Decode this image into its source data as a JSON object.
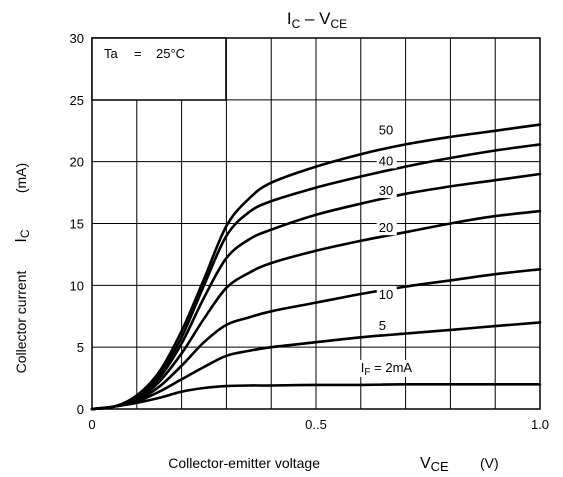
{
  "chart_data": {
    "type": "line",
    "title": {
      "main": "I",
      "sub": "C",
      "mid": " – V",
      "sub2": "CE"
    },
    "xlabel": {
      "text": "Collector-emitter voltage",
      "sym": "V",
      "sub": "CE",
      "unit": "(V)"
    },
    "ylabel": {
      "text": "Collector current",
      "sym": "I",
      "sub": "C",
      "unit": "(mA)"
    },
    "xlim": [
      0,
      1.0
    ],
    "ylim": [
      0,
      30
    ],
    "x_ticks": [
      {
        "value": 0,
        "label": "0"
      },
      {
        "value": 0.5,
        "label": "0..5"
      },
      {
        "value": 1.0,
        "label": "1.0"
      }
    ],
    "y_ticks": [
      {
        "value": 0,
        "label": "0"
      },
      {
        "value": 5,
        "label": "5"
      },
      {
        "value": 10,
        "label": "10"
      },
      {
        "value": 15,
        "label": "15"
      },
      {
        "value": 20,
        "label": "20"
      },
      {
        "value": 25,
        "label": "25"
      },
      {
        "value": 30,
        "label": "30"
      }
    ],
    "grid": true,
    "condition": {
      "label": "Ta",
      "eq": "=",
      "value": "25°C"
    },
    "series": [
      {
        "name": "50",
        "x": [
          0,
          0.05,
          0.1,
          0.15,
          0.2,
          0.25,
          0.3,
          0.35,
          0.4,
          0.5,
          0.6,
          0.7,
          0.8,
          0.9,
          1.0
        ],
        "y": [
          0,
          0.2,
          1.1,
          3.0,
          6.3,
          10.5,
          14.8,
          17.0,
          18.3,
          19.6,
          20.6,
          21.4,
          22.0,
          22.5,
          23.0
        ]
      },
      {
        "name": "40",
        "x": [
          0,
          0.05,
          0.1,
          0.15,
          0.2,
          0.25,
          0.3,
          0.35,
          0.4,
          0.5,
          0.6,
          0.7,
          0.8,
          0.9,
          1.0
        ],
        "y": [
          0,
          0.2,
          1.0,
          2.8,
          5.8,
          10.0,
          14.0,
          15.9,
          16.8,
          17.9,
          18.8,
          19.6,
          20.3,
          20.9,
          21.4
        ]
      },
      {
        "name": "30",
        "x": [
          0,
          0.05,
          0.1,
          0.15,
          0.2,
          0.25,
          0.3,
          0.35,
          0.4,
          0.5,
          0.6,
          0.7,
          0.8,
          0.9,
          1.0
        ],
        "y": [
          0,
          0.2,
          0.9,
          2.5,
          5.3,
          9.0,
          12.2,
          13.7,
          14.5,
          15.7,
          16.6,
          17.4,
          18.0,
          18.5,
          19.0
        ]
      },
      {
        "name": "20",
        "x": [
          0,
          0.05,
          0.1,
          0.15,
          0.2,
          0.25,
          0.3,
          0.35,
          0.4,
          0.5,
          0.6,
          0.7,
          0.8,
          0.9,
          1.0
        ],
        "y": [
          0,
          0.2,
          0.8,
          2.2,
          4.5,
          7.3,
          9.8,
          11.0,
          11.8,
          12.8,
          13.6,
          14.3,
          15.0,
          15.6,
          16.0
        ]
      },
      {
        "name": "10",
        "x": [
          0,
          0.05,
          0.1,
          0.15,
          0.2,
          0.25,
          0.3,
          0.35,
          0.4,
          0.5,
          0.6,
          0.7,
          0.8,
          0.9,
          1.0
        ],
        "y": [
          0,
          0.2,
          0.7,
          1.8,
          3.5,
          5.4,
          6.8,
          7.4,
          7.9,
          8.6,
          9.3,
          9.9,
          10.4,
          10.9,
          11.3
        ]
      },
      {
        "name": "5",
        "x": [
          0,
          0.05,
          0.1,
          0.15,
          0.2,
          0.25,
          0.3,
          0.35,
          0.4,
          0.5,
          0.6,
          0.7,
          0.8,
          0.9,
          1.0
        ],
        "y": [
          0,
          0.2,
          0.6,
          1.4,
          2.4,
          3.4,
          4.3,
          4.7,
          5.0,
          5.4,
          5.8,
          6.1,
          6.4,
          6.7,
          7.0
        ]
      },
      {
        "name": "IF = 2mA",
        "x": [
          0,
          0.05,
          0.1,
          0.15,
          0.2,
          0.25,
          0.3,
          0.35,
          0.4,
          0.5,
          0.6,
          0.7,
          0.8,
          0.9,
          1.0
        ],
        "y": [
          0,
          0.2,
          0.5,
          0.9,
          1.4,
          1.7,
          1.85,
          1.9,
          1.9,
          1.95,
          1.95,
          2.0,
          2.0,
          2.0,
          2.0
        ]
      }
    ],
    "curve_labels": [
      {
        "text": "50",
        "at": [
          0.64,
          22.2
        ]
      },
      {
        "text": "40",
        "at": [
          0.64,
          19.7
        ]
      },
      {
        "text": "30",
        "at": [
          0.64,
          17.3
        ]
      },
      {
        "text": "20",
        "at": [
          0.64,
          14.3
        ]
      },
      {
        "text": "10",
        "at": [
          0.64,
          8.9
        ]
      },
      {
        "text": "5",
        "at": [
          0.64,
          6.4
        ]
      }
    ],
    "if_label": {
      "main": "I",
      "sub": "F",
      "rest": " = 2mA",
      "at": [
        0.6,
        3.0
      ]
    }
  }
}
